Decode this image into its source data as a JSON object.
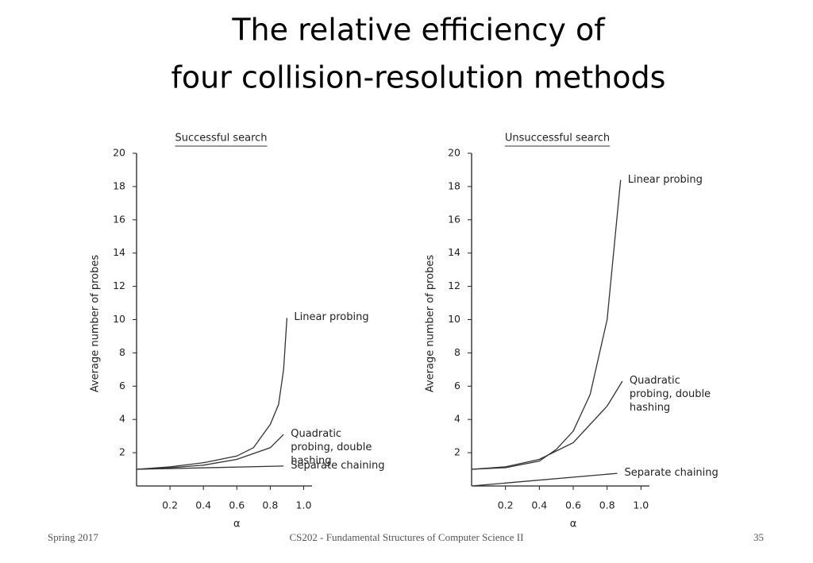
{
  "title": [
    "The relative efficiency of",
    "four collision-resolution methods"
  ],
  "footer": {
    "left": "Spring 2017",
    "center": "CS202 - Fundamental Structures of Computer Science II",
    "right": "35"
  },
  "chart_data": [
    {
      "type": "line",
      "title": "Successful search",
      "xlabel": "α",
      "ylabel": "Average number of probes",
      "xlim": [
        0,
        1.05
      ],
      "ylim": [
        0,
        20
      ],
      "xticks": [
        0.2,
        0.4,
        0.6,
        0.8,
        {
          "value": 1,
          "label": "1.0"
        }
      ],
      "yticks": [
        2,
        4,
        6,
        8,
        10,
        12,
        14,
        16,
        18,
        20
      ],
      "series": [
        {
          "name": "Linear probing",
          "color": "#333333",
          "x": [
            0,
            0.2,
            0.4,
            0.6,
            0.7,
            0.8,
            0.85,
            0.88,
            0.9
          ],
          "values": [
            1,
            1.15,
            1.4,
            1.8,
            2.3,
            3.7,
            4.9,
            7,
            10.1
          ]
        },
        {
          "name": "Quadratic probing, double hashing",
          "color": "#333333",
          "x": [
            0,
            0.2,
            0.4,
            0.6,
            0.8,
            0.88
          ],
          "values": [
            1,
            1.1,
            1.25,
            1.6,
            2.3,
            3.1
          ]
        },
        {
          "name": "Separate chaining",
          "color": "#333333",
          "x": [
            0,
            0.88
          ],
          "values": [
            1,
            1.2
          ]
        }
      ]
    },
    {
      "type": "line",
      "title": "Unsuccessful search",
      "xlabel": "α",
      "ylabel": "Average number of probes",
      "xlim": [
        0,
        1.05
      ],
      "ylim": [
        0,
        20
      ],
      "xticks": [
        0.2,
        0.4,
        0.6,
        0.8,
        {
          "value": 1,
          "label": "1.0"
        }
      ],
      "yticks": [
        2,
        4,
        6,
        8,
        10,
        12,
        14,
        16,
        18,
        20
      ],
      "series": [
        {
          "name": "Linear probing",
          "color": "#333333",
          "x": [
            0,
            0.2,
            0.4,
            0.5,
            0.6,
            0.7,
            0.8,
            0.88
          ],
          "values": [
            1,
            1.1,
            1.5,
            2.2,
            3.3,
            5.5,
            10,
            18.4
          ]
        },
        {
          "name": "Quadratic probing, double hashing",
          "color": "#333333",
          "x": [
            0,
            0.2,
            0.4,
            0.6,
            0.8,
            0.89
          ],
          "values": [
            1,
            1.15,
            1.6,
            2.6,
            4.8,
            6.3
          ]
        },
        {
          "name": "Separate chaining",
          "color": "#333333",
          "x": [
            0,
            0.86
          ],
          "values": [
            0,
            0.76
          ]
        }
      ]
    }
  ]
}
